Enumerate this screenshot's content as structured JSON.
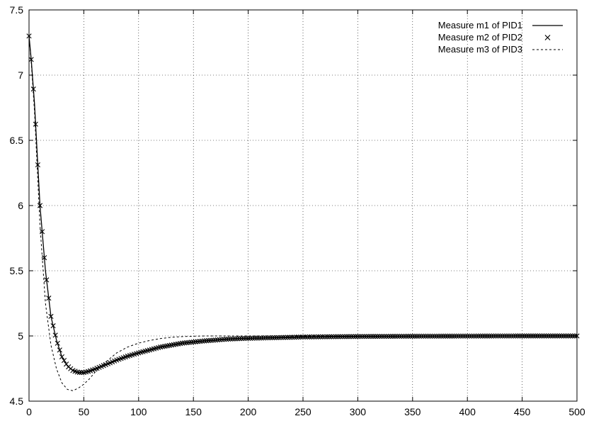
{
  "chart_data": {
    "type": "line",
    "title": "",
    "xlabel": "",
    "ylabel": "",
    "xlim": [
      0,
      500
    ],
    "ylim": [
      4.5,
      7.5
    ],
    "grid": true,
    "legend_position": "top-right",
    "x_ticks": [
      "0",
      "50",
      "100",
      "150",
      "200",
      "250",
      "300",
      "350",
      "400",
      "450",
      "500"
    ],
    "y_ticks": [
      "4.5",
      "5",
      "5.5",
      "6",
      "6.5",
      "7",
      "7.5"
    ],
    "series": [
      {
        "name": "Measure m1 of PID1",
        "style": "solid-line",
        "color": "#000000",
        "x": [
          0,
          2,
          5,
          10,
          15,
          20,
          25,
          30,
          35,
          40,
          45,
          50,
          55,
          60,
          70,
          80,
          90,
          100,
          120,
          140,
          160,
          180,
          200,
          250,
          300,
          350,
          400,
          450,
          500
        ],
        "y": [
          7.3,
          7.12,
          6.78,
          6.0,
          5.5,
          5.15,
          4.97,
          4.84,
          4.77,
          4.735,
          4.72,
          4.72,
          4.73,
          4.745,
          4.78,
          4.815,
          4.845,
          4.87,
          4.915,
          4.945,
          4.962,
          4.975,
          4.982,
          4.992,
          4.996,
          4.998,
          4.999,
          5.0,
          5.0
        ]
      },
      {
        "name": "Measure m2 of PID2",
        "style": "cross-markers",
        "color": "#000000",
        "x": [
          0,
          2,
          5,
          10,
          15,
          20,
          25,
          30,
          35,
          40,
          45,
          50,
          55,
          60,
          70,
          80,
          90,
          100,
          120,
          140,
          160,
          180,
          200,
          250,
          300,
          350,
          400,
          450,
          500
        ],
        "y": [
          7.3,
          7.12,
          6.78,
          6.0,
          5.5,
          5.15,
          4.97,
          4.84,
          4.77,
          4.735,
          4.72,
          4.72,
          4.73,
          4.745,
          4.78,
          4.815,
          4.845,
          4.87,
          4.915,
          4.945,
          4.962,
          4.975,
          4.982,
          4.992,
          4.996,
          4.998,
          4.999,
          5.0,
          5.0
        ]
      },
      {
        "name": "Measure m3 of PID3",
        "style": "dashed-line",
        "color": "#000000",
        "x": [
          0,
          2,
          5,
          10,
          15,
          20,
          25,
          30,
          35,
          40,
          45,
          50,
          55,
          60,
          70,
          80,
          90,
          100,
          110,
          120,
          130,
          140,
          150,
          160,
          180,
          200,
          250,
          300,
          400,
          500
        ],
        "y": [
          7.3,
          7.1,
          6.72,
          5.85,
          5.25,
          4.93,
          4.75,
          4.64,
          4.59,
          4.58,
          4.6,
          4.63,
          4.67,
          4.72,
          4.8,
          4.87,
          4.915,
          4.945,
          4.965,
          4.98,
          4.99,
          4.995,
          4.998,
          5.0,
          5.0,
          5.0,
          5.0,
          5.0,
          5.0,
          5.0
        ]
      }
    ]
  }
}
